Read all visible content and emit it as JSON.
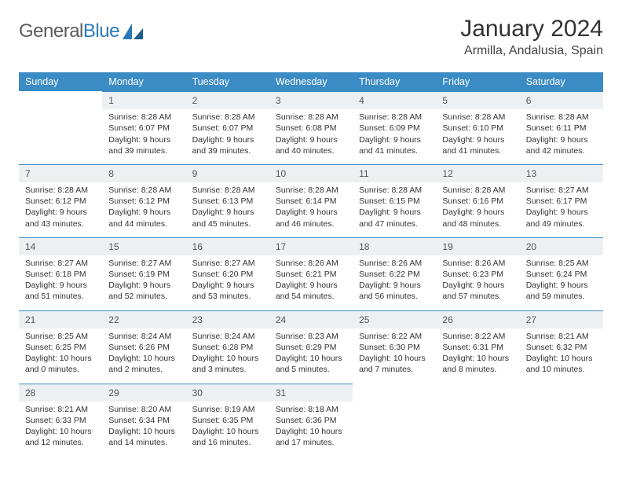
{
  "brand": {
    "part1": "General",
    "part2": "Blue"
  },
  "title": "January 2024",
  "location": "Armilla, Andalusia, Spain",
  "dow": [
    "Sunday",
    "Monday",
    "Tuesday",
    "Wednesday",
    "Thursday",
    "Friday",
    "Saturday"
  ],
  "colors": {
    "header_bg": "#3b8bc4",
    "header_text": "#ffffff",
    "daynum_bg": "#edf0f2",
    "daynum_border": "#3b8bc4",
    "body_text": "#333333",
    "logo_gray": "#5a5a5a",
    "logo_blue": "#2a7ab8",
    "page_bg": "#ffffff"
  },
  "fonts": {
    "title_pt": 30,
    "location_pt": 16,
    "dow_pt": 12.5,
    "daynum_pt": 12,
    "cell_pt": 10.5
  },
  "start_offset": 1,
  "days": [
    {
      "n": 1,
      "sr": "8:28 AM",
      "ss": "6:07 PM",
      "dl": "9 hours and 39 minutes."
    },
    {
      "n": 2,
      "sr": "8:28 AM",
      "ss": "6:07 PM",
      "dl": "9 hours and 39 minutes."
    },
    {
      "n": 3,
      "sr": "8:28 AM",
      "ss": "6:08 PM",
      "dl": "9 hours and 40 minutes."
    },
    {
      "n": 4,
      "sr": "8:28 AM",
      "ss": "6:09 PM",
      "dl": "9 hours and 41 minutes."
    },
    {
      "n": 5,
      "sr": "8:28 AM",
      "ss": "6:10 PM",
      "dl": "9 hours and 41 minutes."
    },
    {
      "n": 6,
      "sr": "8:28 AM",
      "ss": "6:11 PM",
      "dl": "9 hours and 42 minutes."
    },
    {
      "n": 7,
      "sr": "8:28 AM",
      "ss": "6:12 PM",
      "dl": "9 hours and 43 minutes."
    },
    {
      "n": 8,
      "sr": "8:28 AM",
      "ss": "6:12 PM",
      "dl": "9 hours and 44 minutes."
    },
    {
      "n": 9,
      "sr": "8:28 AM",
      "ss": "6:13 PM",
      "dl": "9 hours and 45 minutes."
    },
    {
      "n": 10,
      "sr": "8:28 AM",
      "ss": "6:14 PM",
      "dl": "9 hours and 46 minutes."
    },
    {
      "n": 11,
      "sr": "8:28 AM",
      "ss": "6:15 PM",
      "dl": "9 hours and 47 minutes."
    },
    {
      "n": 12,
      "sr": "8:28 AM",
      "ss": "6:16 PM",
      "dl": "9 hours and 48 minutes."
    },
    {
      "n": 13,
      "sr": "8:27 AM",
      "ss": "6:17 PM",
      "dl": "9 hours and 49 minutes."
    },
    {
      "n": 14,
      "sr": "8:27 AM",
      "ss": "6:18 PM",
      "dl": "9 hours and 51 minutes."
    },
    {
      "n": 15,
      "sr": "8:27 AM",
      "ss": "6:19 PM",
      "dl": "9 hours and 52 minutes."
    },
    {
      "n": 16,
      "sr": "8:27 AM",
      "ss": "6:20 PM",
      "dl": "9 hours and 53 minutes."
    },
    {
      "n": 17,
      "sr": "8:26 AM",
      "ss": "6:21 PM",
      "dl": "9 hours and 54 minutes."
    },
    {
      "n": 18,
      "sr": "8:26 AM",
      "ss": "6:22 PM",
      "dl": "9 hours and 56 minutes."
    },
    {
      "n": 19,
      "sr": "8:26 AM",
      "ss": "6:23 PM",
      "dl": "9 hours and 57 minutes."
    },
    {
      "n": 20,
      "sr": "8:25 AM",
      "ss": "6:24 PM",
      "dl": "9 hours and 59 minutes."
    },
    {
      "n": 21,
      "sr": "8:25 AM",
      "ss": "6:25 PM",
      "dl": "10 hours and 0 minutes."
    },
    {
      "n": 22,
      "sr": "8:24 AM",
      "ss": "6:26 PM",
      "dl": "10 hours and 2 minutes."
    },
    {
      "n": 23,
      "sr": "8:24 AM",
      "ss": "6:28 PM",
      "dl": "10 hours and 3 minutes."
    },
    {
      "n": 24,
      "sr": "8:23 AM",
      "ss": "6:29 PM",
      "dl": "10 hours and 5 minutes."
    },
    {
      "n": 25,
      "sr": "8:22 AM",
      "ss": "6:30 PM",
      "dl": "10 hours and 7 minutes."
    },
    {
      "n": 26,
      "sr": "8:22 AM",
      "ss": "6:31 PM",
      "dl": "10 hours and 8 minutes."
    },
    {
      "n": 27,
      "sr": "8:21 AM",
      "ss": "6:32 PM",
      "dl": "10 hours and 10 minutes."
    },
    {
      "n": 28,
      "sr": "8:21 AM",
      "ss": "6:33 PM",
      "dl": "10 hours and 12 minutes."
    },
    {
      "n": 29,
      "sr": "8:20 AM",
      "ss": "6:34 PM",
      "dl": "10 hours and 14 minutes."
    },
    {
      "n": 30,
      "sr": "8:19 AM",
      "ss": "6:35 PM",
      "dl": "10 hours and 16 minutes."
    },
    {
      "n": 31,
      "sr": "8:18 AM",
      "ss": "6:36 PM",
      "dl": "10 hours and 17 minutes."
    }
  ],
  "labels": {
    "sunrise": "Sunrise:",
    "sunset": "Sunset:",
    "daylight": "Daylight:"
  }
}
